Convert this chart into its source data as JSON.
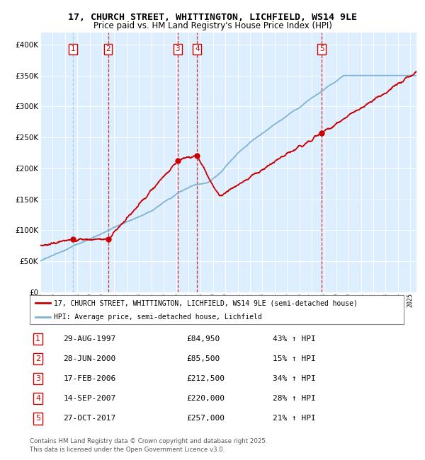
{
  "title_line1": "17, CHURCH STREET, WHITTINGTON, LICHFIELD, WS14 9LE",
  "title_line2": "Price paid vs. HM Land Registry's House Price Index (HPI)",
  "legend_red": "17, CHURCH STREET, WHITTINGTON, LICHFIELD, WS14 9LE (semi-detached house)",
  "legend_blue": "HPI: Average price, semi-detached house, Lichfield",
  "footer_line1": "Contains HM Land Registry data © Crown copyright and database right 2025.",
  "footer_line2": "This data is licensed under the Open Government Licence v3.0.",
  "transactions": [
    {
      "num": 1,
      "date": "29-AUG-1997",
      "price": 84950,
      "pct": "43% ↑ HPI",
      "year": 1997.66
    },
    {
      "num": 2,
      "date": "28-JUN-2000",
      "price": 85500,
      "pct": "15% ↑ HPI",
      "year": 2000.49
    },
    {
      "num": 3,
      "date": "17-FEB-2006",
      "price": 212500,
      "pct": "34% ↑ HPI",
      "year": 2006.12
    },
    {
      "num": 4,
      "date": "14-SEP-2007",
      "price": 220000,
      "pct": "28% ↑ HPI",
      "year": 2007.71
    },
    {
      "num": 5,
      "date": "27-OCT-2017",
      "price": 257000,
      "pct": "21% ↑ HPI",
      "year": 2017.82
    }
  ],
  "red_color": "#cc0000",
  "blue_color": "#7fb3d3",
  "bg_color": "#ddeeff",
  "vline_color_1": "#aaccee",
  "vline_color_rest": "#cc0000",
  "ylim": [
    0,
    420000
  ],
  "xlim_start": 1995.0,
  "xlim_end": 2025.5
}
